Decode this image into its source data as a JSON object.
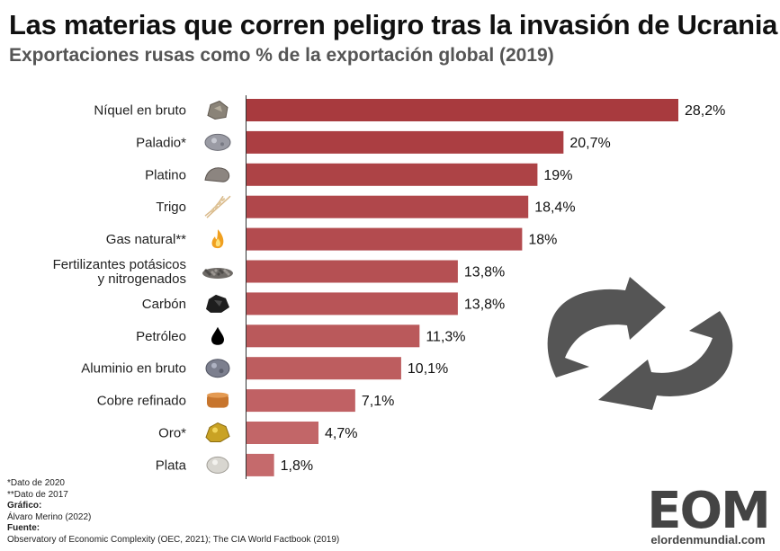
{
  "header": {
    "title": "Las materias que corren peligro tras la invasión de Ucrania",
    "subtitle": "Exportaciones rusas como % de la exportación global (2019)"
  },
  "chart_data": {
    "type": "bar",
    "orientation": "horizontal",
    "categories": [
      [
        "Níquel en bruto"
      ],
      [
        "Paladio*"
      ],
      [
        "Platino"
      ],
      [
        "Trigo"
      ],
      [
        "Gas natural**"
      ],
      [
        "Fertilizantes potásicos",
        "y nitrogenados"
      ],
      [
        "Carbón"
      ],
      [
        "Petróleo"
      ],
      [
        "Aluminio en bruto"
      ],
      [
        "Cobre refinado"
      ],
      [
        "Oro*"
      ],
      [
        "Plata"
      ]
    ],
    "values": [
      28.2,
      20.7,
      19,
      18.4,
      18,
      13.8,
      13.8,
      11.3,
      10.1,
      7.1,
      4.7,
      1.8
    ],
    "value_labels": [
      "28,2%",
      "20,7%",
      "19%",
      "18,4%",
      "18%",
      "13,8%",
      "13,8%",
      "11,3%",
      "10,1%",
      "7,1%",
      "4,7%",
      "1,8%"
    ],
    "icons": [
      "nickel-ore-icon",
      "palladium-ore-icon",
      "platinum-ore-icon",
      "wheat-icon",
      "flame-icon",
      "fertilizer-icon",
      "coal-icon",
      "oil-drop-icon",
      "aluminum-ore-icon",
      "copper-cathode-icon",
      "gold-nugget-icon",
      "silver-ore-icon"
    ],
    "xlim": [
      0,
      28.2
    ],
    "bar_color_start": "#a83a3e",
    "bar_color_end": "#c56a6c",
    "grid": false,
    "legend": false
  },
  "notes": {
    "note1": "*Dato de 2020",
    "note2": "**Dato de 2017",
    "grafico_label": "Gráfico:",
    "grafico_value": "Álvaro Merino (2022)",
    "fuente_label": "Fuente:",
    "fuente_value": "Observatory of Economic Complexity (OEC, 2021); The CIA World Factbook (2019)"
  },
  "logo": {
    "mark": "EOM",
    "url": "elordenmundial.com",
    "color": "#444444"
  },
  "watermark": {
    "icon": "refresh-arrows-icon",
    "color": "#555555"
  }
}
